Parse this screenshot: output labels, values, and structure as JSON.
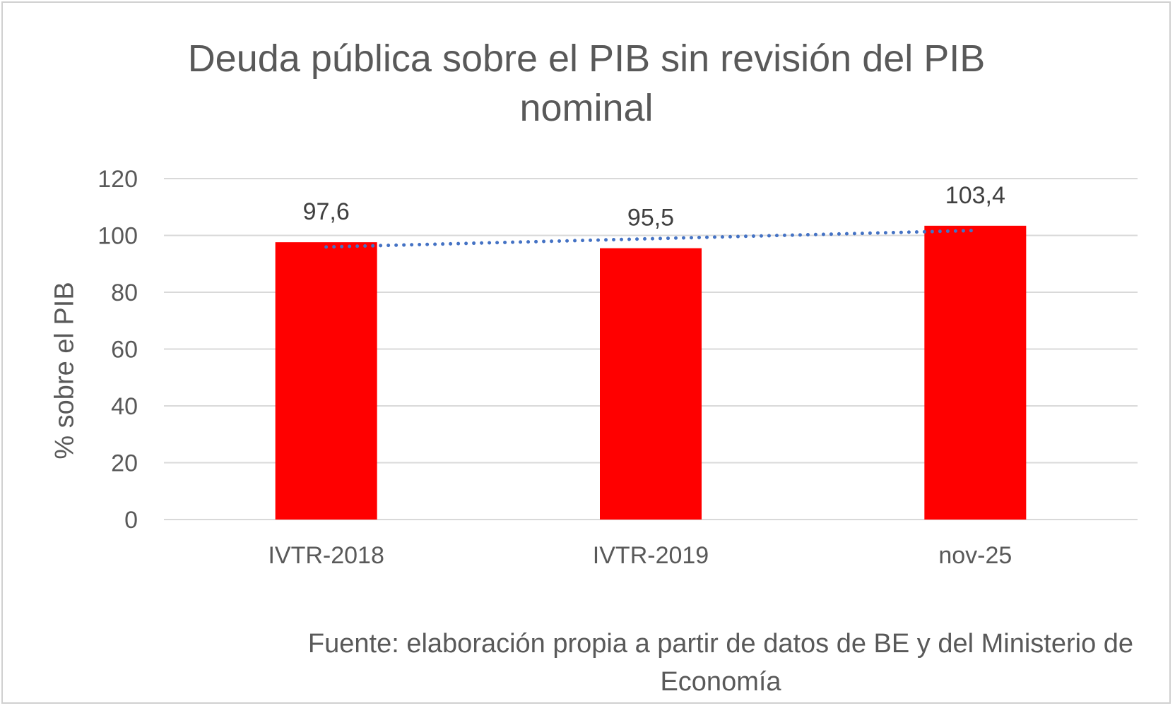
{
  "chart_data": {
    "type": "bar",
    "title": "Deuda pública sobre el PIB sin revisión del PIB nominal",
    "title_lines": [
      "Deuda pública sobre el PIB sin revisión del PIB",
      "nominal"
    ],
    "ylabel": "% sobre el PIB",
    "xlabel": "",
    "categories": [
      "IVTR-2018",
      "IVTR-2019",
      "nov-25"
    ],
    "values": [
      97.6,
      95.5,
      103.4
    ],
    "data_labels": [
      "97,6",
      "95,5",
      "103,4"
    ],
    "ylim": [
      0,
      120
    ],
    "yticks": [
      0,
      20,
      40,
      60,
      80,
      100,
      120
    ],
    "grid": true,
    "trendline": {
      "type": "linear",
      "style": "dotted"
    },
    "colors": {
      "bar": "#ff0000",
      "trendline": "#4472c4",
      "grid": "#d9d9d9"
    }
  },
  "source_note": "Fuente: elaboración propia a partir de datos de BE y del Ministerio de Economía"
}
